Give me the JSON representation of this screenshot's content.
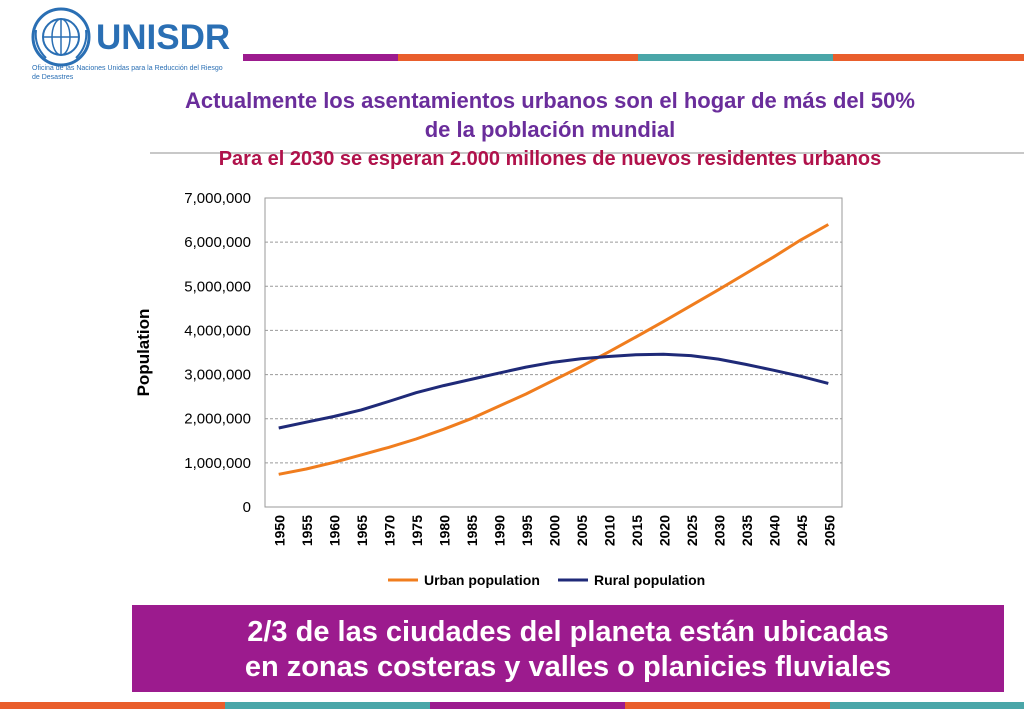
{
  "logo": {
    "name": "UNISDR",
    "subtitle": "Oficina de las Naciones Unidas para la Reducción del Riesgo de Desastres"
  },
  "heading": {
    "line1": "Actualmente los asentamientos urbanos son el hogar de más del 50%",
    "line2": "de la población mundial",
    "line3": "Para el 2030 se esperan 2.000 millones de nuevos residentes urbanos"
  },
  "banner": {
    "line1": "2/3 de las ciudades del planeta están ubicadas",
    "line2": "en zonas costeras y valles o planicies fluviales"
  },
  "colors": {
    "urban": "#f07d1e",
    "rural": "#1f2a78",
    "banner": "#9c1b8e",
    "title": "#6a2d9b",
    "subtitle": "#b0124b"
  },
  "chart_data": {
    "type": "line",
    "ylabel": "Population",
    "ylim": [
      0,
      7000000
    ],
    "yticks": [
      "0",
      "1,000,000",
      "2,000,000",
      "3,000,000",
      "4,000,000",
      "5,000,000",
      "6,000,000",
      "7,000,000"
    ],
    "grid": true,
    "legend_position": "bottom",
    "x": [
      "1950",
      "1955",
      "1960",
      "1965",
      "1970",
      "1975",
      "1980",
      "1985",
      "1990",
      "1995",
      "2000",
      "2005",
      "2010",
      "2015",
      "2020",
      "2025",
      "2030",
      "2035",
      "2040",
      "2045",
      "2050"
    ],
    "series": [
      {
        "name": "Urban population",
        "values": [
          740000,
          860000,
          1010000,
          1180000,
          1350000,
          1540000,
          1760000,
          2000000,
          2280000,
          2560000,
          2870000,
          3180000,
          3510000,
          3850000,
          4200000,
          4560000,
          4920000,
          5290000,
          5660000,
          6050000,
          6400000
        ]
      },
      {
        "name": "Rural population",
        "values": [
          1790000,
          1920000,
          2050000,
          2200000,
          2390000,
          2590000,
          2750000,
          2890000,
          3030000,
          3170000,
          3280000,
          3360000,
          3410000,
          3450000,
          3460000,
          3430000,
          3350000,
          3230000,
          3100000,
          2960000,
          2800000
        ]
      }
    ]
  }
}
